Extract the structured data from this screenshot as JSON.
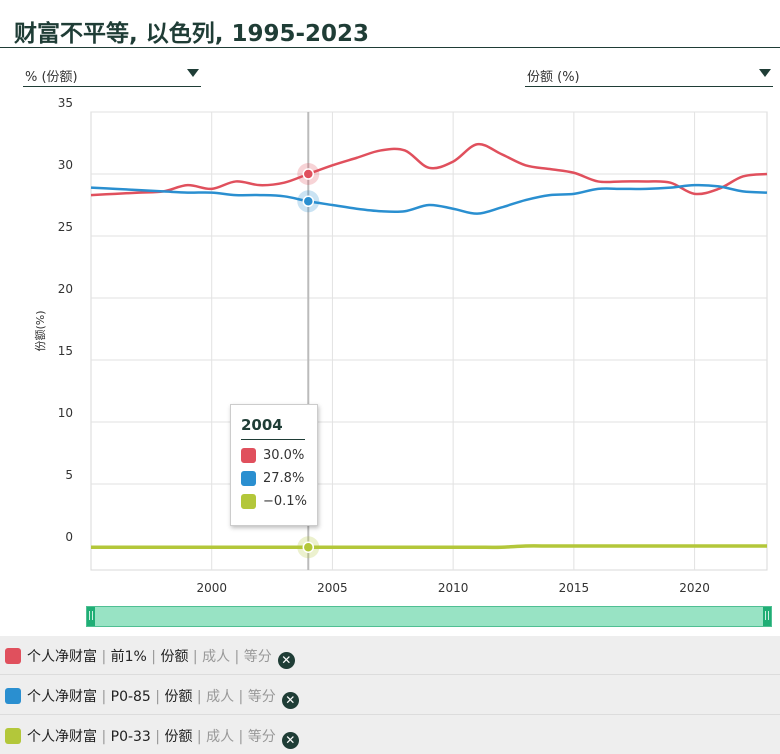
{
  "header": {
    "title": "财富不平等, 以色列, 1995-2023"
  },
  "controls": {
    "left_dropdown": "% (份额)",
    "right_dropdown": "份额 (%)"
  },
  "tooltip": {
    "year": "2004",
    "rows": [
      {
        "color": "#e0505d",
        "value": "30.0%"
      },
      {
        "color": "#2a8fd0",
        "value": "27.8%"
      },
      {
        "color": "#b3c73a",
        "value": "−0.1%"
      }
    ]
  },
  "legend": [
    {
      "color": "#e0505d",
      "series": "个人净财富",
      "group": "前1%",
      "measure": "份额",
      "unit": "成人",
      "method": "等分"
    },
    {
      "color": "#2a8fd0",
      "series": "个人净财富",
      "group": "P0-85",
      "measure": "份额",
      "unit": "成人",
      "method": "等分"
    },
    {
      "color": "#b3c73a",
      "series": "个人净财富",
      "group": "P0-33",
      "measure": "份额",
      "unit": "成人",
      "method": "等分"
    }
  ],
  "chart_data": {
    "type": "line",
    "title": "财富不平等, 以色列, 1995-2023",
    "ylabel": "份额(%)",
    "xlabel": "",
    "xlim": [
      1995,
      2023
    ],
    "ylim": [
      0,
      35
    ],
    "x_ticks": [
      2000,
      2005,
      2010,
      2015,
      2020
    ],
    "y_ticks": [
      0,
      5,
      10,
      15,
      20,
      25,
      30,
      35
    ],
    "grid": true,
    "highlight_x": 2004,
    "series": [
      {
        "name": "个人净财富 | 前1% | 份额 | 成人 | 等分",
        "color": "#e0505d",
        "x": [
          1995,
          1996,
          1997,
          1998,
          1999,
          2000,
          2001,
          2002,
          2003,
          2004,
          2005,
          2006,
          2007,
          2008,
          2009,
          2010,
          2011,
          2012,
          2013,
          2014,
          2015,
          2016,
          2017,
          2018,
          2019,
          2020,
          2021,
          2022,
          2023
        ],
        "y": [
          28.3,
          28.4,
          28.5,
          28.6,
          29.1,
          28.8,
          29.4,
          29.1,
          29.3,
          30.0,
          30.7,
          31.3,
          31.9,
          31.9,
          30.5,
          31.0,
          32.4,
          31.6,
          30.7,
          30.4,
          30.1,
          29.4,
          29.4,
          29.4,
          29.3,
          28.4,
          28.8,
          29.8,
          30.0
        ]
      },
      {
        "name": "个人净财富 | P0-85 | 份额 | 成人 | 等分",
        "color": "#2a8fd0",
        "x": [
          1995,
          1996,
          1997,
          1998,
          1999,
          2000,
          2001,
          2002,
          2003,
          2004,
          2005,
          2006,
          2007,
          2008,
          2009,
          2010,
          2011,
          2012,
          2013,
          2014,
          2015,
          2016,
          2017,
          2018,
          2019,
          2020,
          2021,
          2022,
          2023
        ],
        "y": [
          28.9,
          28.8,
          28.7,
          28.6,
          28.5,
          28.5,
          28.3,
          28.3,
          28.2,
          27.8,
          27.5,
          27.2,
          27.0,
          27.0,
          27.5,
          27.2,
          26.8,
          27.3,
          27.9,
          28.3,
          28.4,
          28.8,
          28.8,
          28.8,
          28.9,
          29.1,
          29.0,
          28.6,
          28.5
        ]
      },
      {
        "name": "个人净财富 | P0-33 | 份额 | 成人 | 等分",
        "color": "#b3c73a",
        "x": [
          1995,
          1996,
          1997,
          1998,
          1999,
          2000,
          2001,
          2002,
          2003,
          2004,
          2005,
          2006,
          2007,
          2008,
          2009,
          2010,
          2011,
          2012,
          2013,
          2014,
          2015,
          2016,
          2017,
          2018,
          2019,
          2020,
          2021,
          2022,
          2023
        ],
        "y": [
          -0.1,
          -0.1,
          -0.1,
          -0.1,
          -0.1,
          -0.1,
          -0.1,
          -0.1,
          -0.1,
          -0.1,
          -0.1,
          -0.1,
          -0.1,
          -0.1,
          -0.1,
          -0.1,
          -0.1,
          -0.1,
          0.0,
          0.0,
          0.0,
          0.0,
          0.0,
          0.0,
          0.0,
          0.0,
          0.0,
          0.0,
          0.0
        ]
      }
    ]
  }
}
